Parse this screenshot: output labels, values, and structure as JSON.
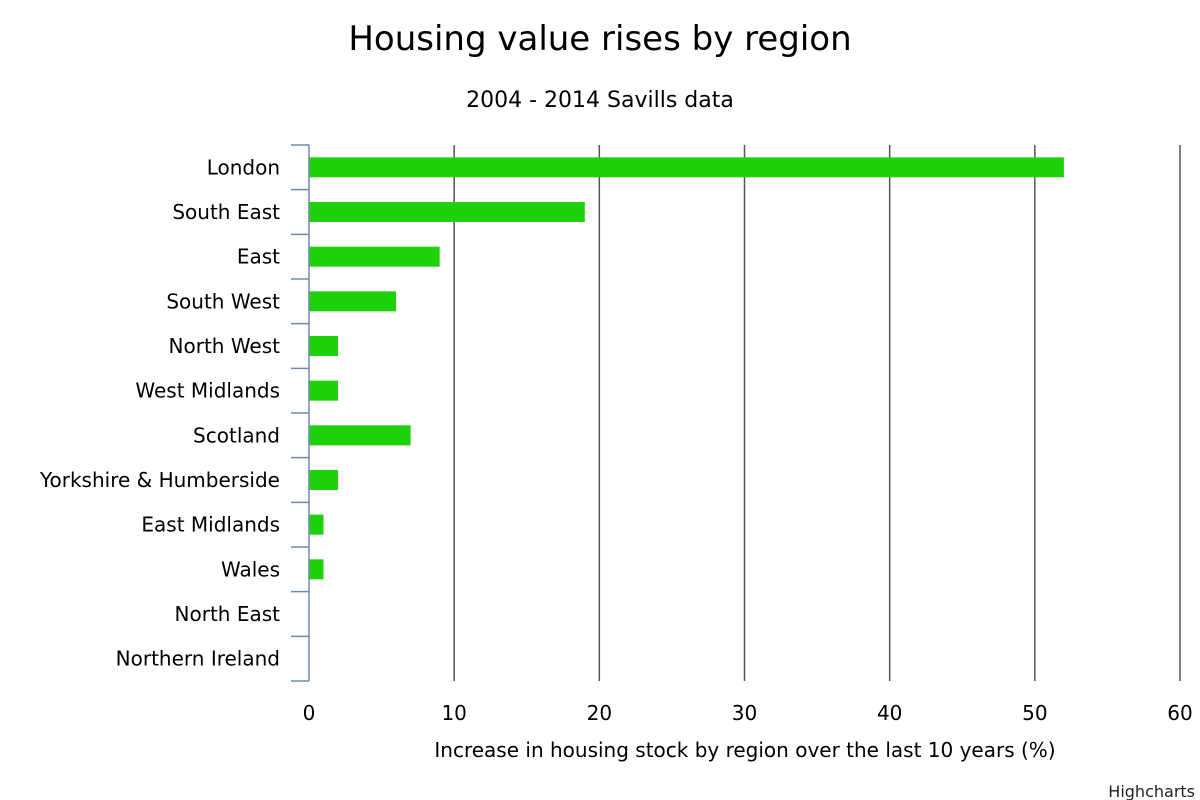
{
  "chart_data": {
    "type": "bar",
    "orientation": "horizontal",
    "title": "Housing value rises by region",
    "subtitle": "2004 - 2014 Savills data",
    "xlabel": "",
    "ylabel": "Increase in housing stock by region over the last 10 years (%)",
    "categories": [
      "London",
      "South East",
      "East",
      "South West",
      "North West",
      "West Midlands",
      "Scotland",
      "Yorkshire & Humberside",
      "East Midlands",
      "Wales",
      "North East",
      "Northern Ireland"
    ],
    "values": [
      52,
      19,
      9,
      6,
      2,
      2,
      7,
      2,
      1,
      1,
      0,
      0
    ],
    "ylim": [
      0,
      60
    ],
    "ticks": [
      "0",
      "10",
      "20",
      "30",
      "40",
      "50",
      "60"
    ],
    "grid": true,
    "legend": "none",
    "bar_color": "#1ed10a",
    "grid_color": "#555555",
    "axis_color": "#6e8ab0"
  },
  "credits": "Highcharts"
}
